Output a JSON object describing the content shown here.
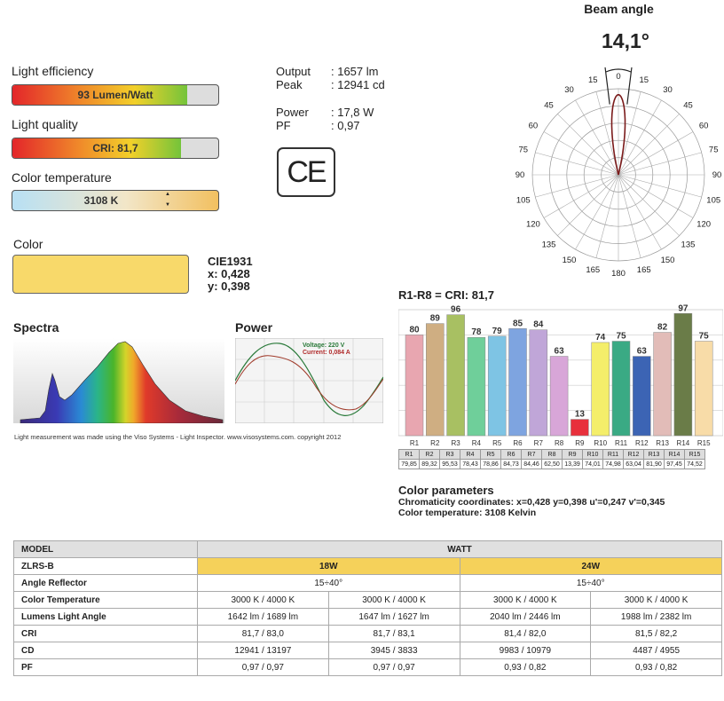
{
  "beam": {
    "title": "Beam angle",
    "angle": "14,1°",
    "labels_right": [
      "0",
      "15",
      "30",
      "45",
      "60",
      "75",
      "90",
      "105",
      "120",
      "135",
      "150",
      "165",
      "180"
    ],
    "labels_left": [
      "15",
      "30",
      "45",
      "60",
      "75",
      "90",
      "105",
      "120",
      "135",
      "150",
      "165"
    ],
    "beam_angle_deg": 14.1
  },
  "efficiency": {
    "label": "Light efficiency",
    "text": "93 Lumen/Watt",
    "fraction": 0.85
  },
  "quality": {
    "label": "Light quality",
    "text": "CRI: 81,7",
    "fraction": 0.817
  },
  "colortemp": {
    "label": "Color temperature",
    "text": "3108 K",
    "up": "▲",
    "down": "▼"
  },
  "stats": {
    "output_k": "Output",
    "output_v": ": 1657 lm",
    "peak_k": "Peak",
    "peak_v": ": 12941 cd",
    "power_k": "Power",
    "power_v": ": 17,8 W",
    "pf_k": "PF",
    "pf_v": ": 0,97"
  },
  "ce": "CE",
  "color": {
    "label": "Color",
    "swatch": "#f8d96a",
    "cie": "CIE1931",
    "x": "x: 0,428",
    "y": "y: 0,398"
  },
  "spectra": {
    "label": "Spectra"
  },
  "power": {
    "label": "Power",
    "voltage": "Voltage: 220 V",
    "current": "Current: 0,084 A"
  },
  "footnote": "Light measurement was made using the Viso Systems - Light Inspector. www.visosystems.com. copyright 2012",
  "cri_chart": {
    "title": "R1-R8 = CRI: 81,7",
    "chart_data": {
      "type": "bar",
      "categories": [
        "R1",
        "R2",
        "R3",
        "R4",
        "R5",
        "R6",
        "R7",
        "R8",
        "R9",
        "R10",
        "R11",
        "R12",
        "R13",
        "R14",
        "R15"
      ],
      "values": [
        80,
        89,
        96,
        78,
        79,
        85,
        84,
        63,
        13,
        74,
        75,
        63,
        82,
        97,
        75
      ],
      "precise": [
        "79,85",
        "89,32",
        "95,53",
        "78,43",
        "78,86",
        "84,73",
        "84,46",
        "62,50",
        "13,39",
        "74,01",
        "74,98",
        "63,04",
        "81,90",
        "97,45",
        "74,52"
      ],
      "colors": [
        "#e8a6b0",
        "#cfae82",
        "#a8c062",
        "#6fcf9a",
        "#7ec4e4",
        "#7ea4e0",
        "#c0a6d8",
        "#d8a6d8",
        "#e8303c",
        "#f4ee6a",
        "#3aaa84",
        "#3c64b4",
        "#e2bcb8",
        "#6a7c48",
        "#f8dca8"
      ],
      "ylim": [
        0,
        100
      ]
    }
  },
  "color_params": {
    "title": "Color parameters",
    "line1": "Chromaticity coordinates: x=0,428 y=0,398  u'=0,247 v'=0,345",
    "line2": "Color temperature: 3108 Kelvin"
  },
  "spec": {
    "model_h": "MODEL",
    "watt_h": "WATT",
    "model": "ZLRS-B",
    "w18": "18W",
    "w24": "24W",
    "rows": [
      {
        "name": "Angle Reflector",
        "span": true,
        "a": "15÷40°",
        "b": "15÷40°"
      },
      {
        "name": "Color Temperature",
        "span": false,
        "v": [
          "3000 K / 4000 K",
          "3000 K / 4000 K",
          "3000 K / 4000 K",
          "3000 K / 4000 K"
        ]
      },
      {
        "name": "Lumens Light Angle",
        "span": false,
        "v": [
          "1642 lm / 1689 lm",
          "1647 lm / 1627 lm",
          "2040 lm / 2446 lm",
          "1988 lm / 2382 lm"
        ]
      },
      {
        "name": "CRI",
        "span": false,
        "v": [
          "81,7 / 83,0",
          "81,7 / 83,1",
          "81,4 / 82,0",
          "81,5 / 82,2"
        ]
      },
      {
        "name": "CD",
        "span": false,
        "v": [
          "12941 / 13197",
          "3945 / 3833",
          "9983 / 10979",
          "4487 / 4955"
        ]
      },
      {
        "name": "PF",
        "span": false,
        "v": [
          "0,97 / 0,97",
          "0,97 / 0,97",
          "0,93 / 0,82",
          "0,93 / 0,82"
        ]
      }
    ]
  }
}
